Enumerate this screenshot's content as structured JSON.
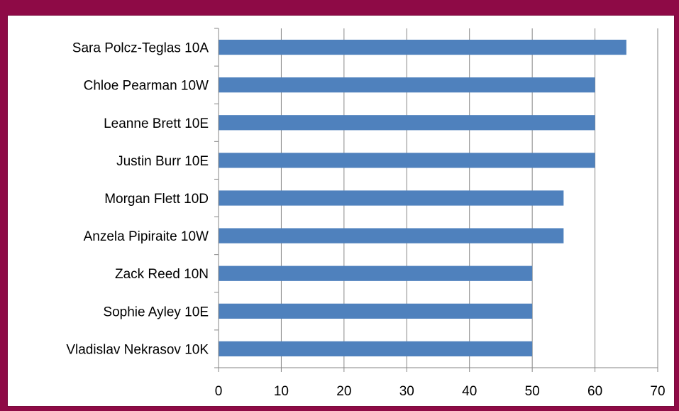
{
  "chart_data": {
    "type": "bar",
    "orientation": "horizontal",
    "categories": [
      "Sara Polcz-Teglas  10A",
      "Chloe Pearman  10W",
      "Leanne Brett  10E",
      "Justin Burr  10E",
      "Morgan Flett  10D",
      "Anzela Pipiraite  10W",
      "Zack Reed  10N",
      "Sophie Ayley  10E",
      "Vladislav Nekrasov  10K"
    ],
    "values": [
      65,
      60,
      60,
      60,
      55,
      55,
      50,
      50,
      50
    ],
    "xlim": [
      0,
      70
    ],
    "x_ticks": [
      "0",
      "10",
      "20",
      "30",
      "40",
      "50",
      "60",
      "70"
    ],
    "grid": true,
    "bar_color": "#4f81bd",
    "gridline_color": "#868686",
    "frame_color": "#8e0a46"
  }
}
